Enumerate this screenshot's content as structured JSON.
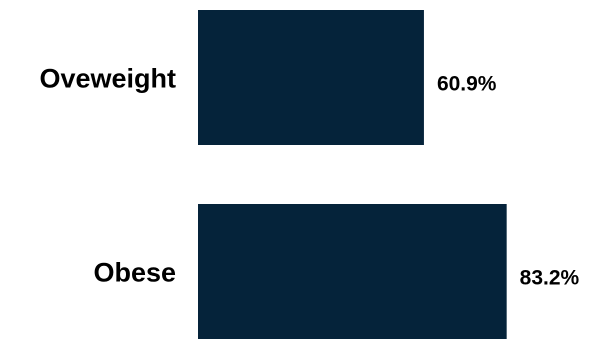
{
  "chart_data": {
    "type": "bar",
    "orientation": "horizontal",
    "categories": [
      "Oveweight",
      "Obese"
    ],
    "values": [
      60.9,
      83.2
    ],
    "value_labels": [
      "60.9%",
      "83.2%"
    ],
    "xlim": [
      0,
      100
    ],
    "bar_color": "#05233a",
    "grid": false,
    "legend": "none"
  }
}
